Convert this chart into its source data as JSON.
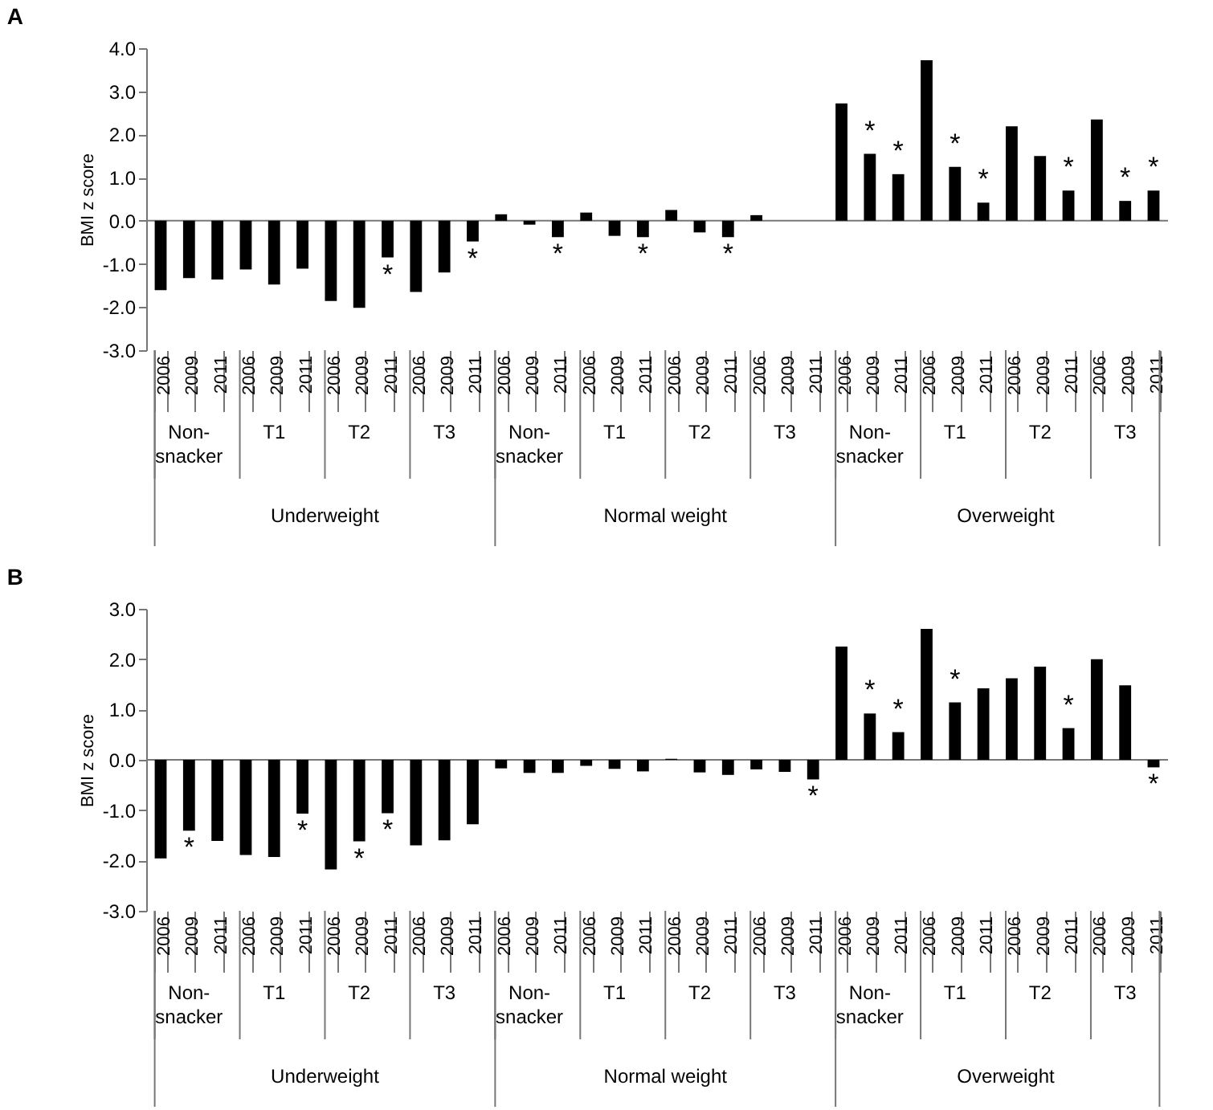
{
  "chart_data": [
    {
      "type": "bar",
      "title": "A",
      "ylabel": "BMI z score",
      "categories": [
        "2006",
        "2009",
        "2011",
        "2006",
        "2009",
        "2011",
        "2006",
        "2009",
        "2011",
        "2006",
        "2009",
        "2011",
        "2006",
        "2009",
        "2011",
        "2006",
        "2009",
        "2011",
        "2006",
        "2009",
        "2011",
        "2006",
        "2009",
        "2011",
        "2006",
        "2009",
        "2011",
        "2006",
        "2009",
        "2011",
        "2006",
        "2009",
        "2011",
        "2006",
        "2009",
        "2011"
      ],
      "annotations": [
        "Non-snacker",
        "T1",
        "T2",
        "T3",
        "Non-snacker",
        "T1",
        "T2",
        "T3",
        "Non-snacker",
        "T1",
        "T2",
        "T3",
        "Underweight",
        "Normal weight",
        "Overweight"
      ],
      "series": [
        {
          "color": "#000000",
          "values": [
            -1.61,
            -1.33,
            -1.36,
            -1.13,
            -1.48,
            -1.11,
            -1.86,
            -2.02,
            -0.85,
            -1.65,
            -1.2,
            -0.48,
            0.15,
            -0.09,
            -0.38,
            0.19,
            -0.35,
            -0.38,
            0.25,
            -0.27,
            -0.38,
            0.13,
            null,
            null,
            2.72,
            1.55,
            1.08,
            3.72,
            1.25,
            0.42,
            2.19,
            1.5,
            0.7,
            2.35,
            0.46,
            0.7
          ],
          "value_labels": [
            null,
            null,
            null,
            null,
            null,
            null,
            null,
            null,
            "*",
            null,
            null,
            "*",
            null,
            null,
            "*",
            null,
            null,
            "*",
            null,
            null,
            "*",
            null,
            null,
            null,
            null,
            "*",
            "*",
            null,
            "*",
            "*",
            null,
            null,
            "*",
            null,
            "*",
            "*"
          ]
        }
      ],
      "ylim": [
        -3,
        4
      ],
      "yticks": [
        {
          "value": 4,
          "label": "4.0"
        },
        {
          "value": 3,
          "label": "3.0"
        },
        {
          "value": 2,
          "label": "2.0"
        },
        {
          "value": 1,
          "label": "1.0"
        },
        {
          "value": 0,
          "label": "0.0"
        },
        {
          "value": -1,
          "label": "-1.0"
        },
        {
          "value": -2,
          "label": "-2.0"
        },
        {
          "value": -3,
          "label": "-3.0"
        }
      ]
    },
    {
      "type": "bar",
      "title": "B",
      "ylabel": "BMI z score",
      "categories": [
        "2006",
        "2009",
        "2011",
        "2006",
        "2009",
        "2011",
        "2006",
        "2009",
        "2011",
        "2006",
        "2009",
        "2011",
        "2006",
        "2009",
        "2011",
        "2006",
        "2009",
        "2011",
        "2006",
        "2009",
        "2011",
        "2006",
        "2009",
        "2011",
        "2006",
        "2009",
        "2011",
        "2006",
        "2009",
        "2011",
        "2006",
        "2009",
        "2011",
        "2006",
        "2009",
        "2011"
      ],
      "annotations": [
        "Non-snacker",
        "T1",
        "T2",
        "T3",
        "Non-snacker",
        "T1",
        "T2",
        "T3",
        "Non-snacker",
        "T1",
        "T2",
        "T3",
        "Underweight",
        "Normal weight",
        "Overweight"
      ],
      "series": [
        {
          "color": "#000000",
          "values": [
            -1.96,
            -1.41,
            -1.61,
            -1.89,
            -1.93,
            -1.07,
            -2.18,
            -1.62,
            -1.06,
            -1.7,
            -1.6,
            -1.28,
            -0.17,
            -0.26,
            -0.26,
            -0.12,
            -0.18,
            -0.23,
            0.02,
            -0.25,
            -0.3,
            -0.19,
            -0.24,
            -0.39,
            2.25,
            0.92,
            0.55,
            2.6,
            1.14,
            1.42,
            1.62,
            1.85,
            0.63,
            2.0,
            1.48,
            -0.15
          ],
          "value_labels": [
            null,
            "*",
            null,
            null,
            null,
            "*",
            null,
            "*",
            "*",
            null,
            null,
            null,
            null,
            null,
            null,
            null,
            null,
            null,
            null,
            null,
            null,
            null,
            null,
            "*",
            null,
            "*",
            "*",
            null,
            "*",
            null,
            null,
            null,
            "*",
            null,
            null,
            "*"
          ]
        }
      ],
      "ylim": [
        -3,
        3
      ],
      "yticks": [
        {
          "value": 3,
          "label": "3.0"
        },
        {
          "value": 2,
          "label": "2.0"
        },
        {
          "value": 1,
          "label": "1.0"
        },
        {
          "value": 0,
          "label": "0.0"
        },
        {
          "value": -1,
          "label": "-1.0"
        },
        {
          "value": -2,
          "label": "-2.0"
        },
        {
          "value": -3,
          "label": "-3.0"
        }
      ]
    }
  ]
}
